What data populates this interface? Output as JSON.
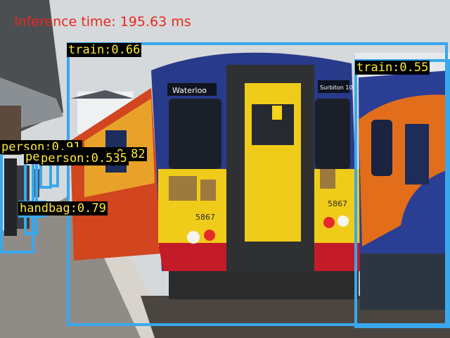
{
  "overlay": {
    "inference_text": "Inference time: 195.63 ms",
    "box_color": "#38a8ee",
    "label_text_color": "#ffeb3b",
    "inference_text_color": "#e8281e"
  },
  "detections": [
    {
      "label": "train:0.66"
    },
    {
      "label": "train:0.55"
    },
    {
      "label": "person:0.91"
    },
    {
      "label": "person:0.82"
    },
    {
      "label": "person:0.53"
    },
    {
      "label": "person:0.535"
    },
    {
      "label": "handbag:0.79"
    }
  ],
  "scene": {
    "destination_sign_left": "Waterloo",
    "destination_sign_right": "Surbiton 10",
    "unit_number_left": "5867",
    "unit_number_right": "5867"
  }
}
